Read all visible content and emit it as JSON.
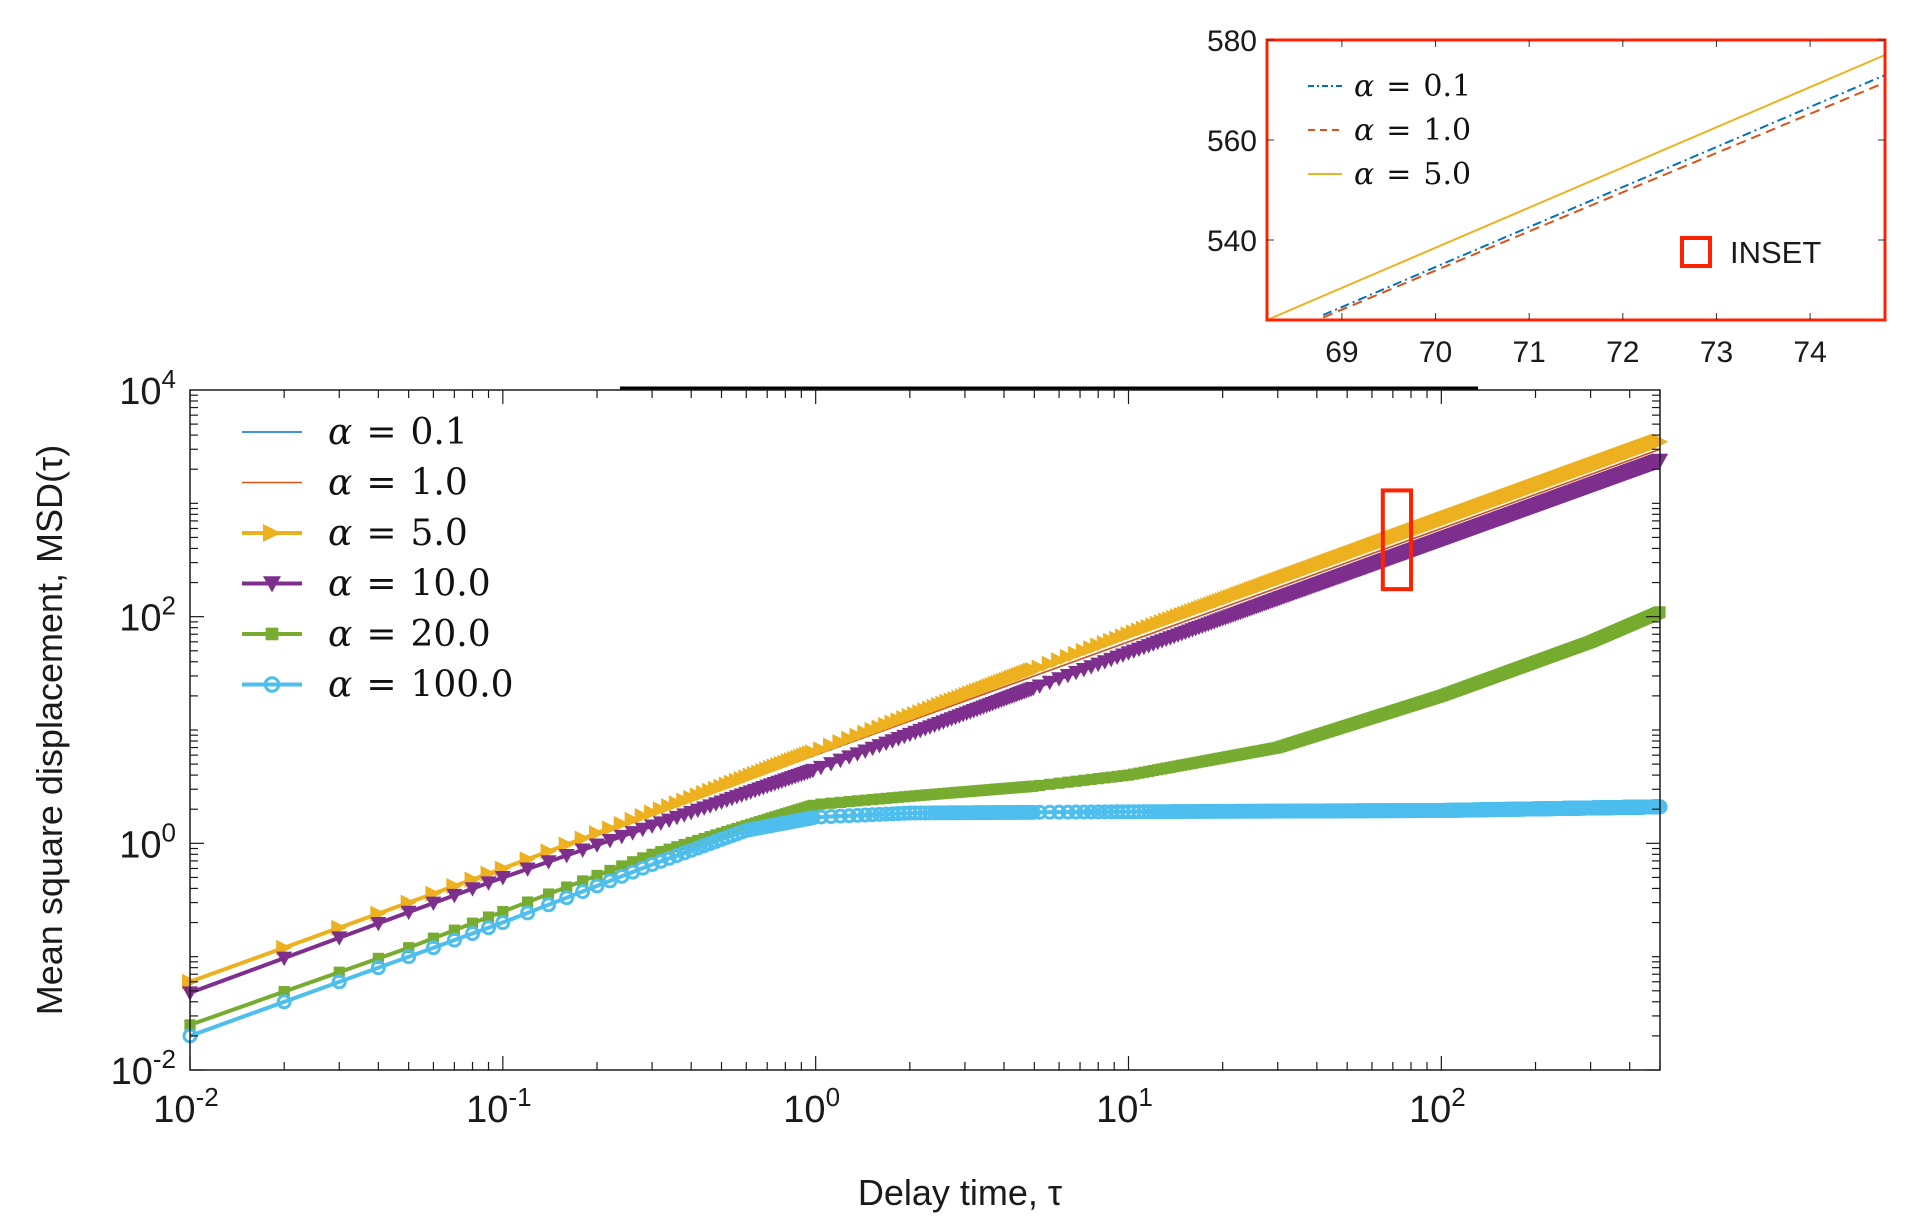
{
  "chart_data": [
    {
      "id": "main",
      "type": "line",
      "scale": "log-log",
      "xlabel": "Delay time, τ",
      "ylabel": "Mean square displacement,  MSD(τ)",
      "xlim": [
        0.01,
        500
      ],
      "ylim": [
        0.01,
        10000
      ],
      "x_ticks": [
        {
          "value": 0.01,
          "base": "10",
          "exp": "-2"
        },
        {
          "value": 0.1,
          "base": "10",
          "exp": "-1"
        },
        {
          "value": 1,
          "base": "10",
          "exp": "0"
        },
        {
          "value": 10,
          "base": "10",
          "exp": "1"
        },
        {
          "value": 100,
          "base": "10",
          "exp": "2"
        }
      ],
      "y_ticks": [
        {
          "value": 0.01,
          "base": "10",
          "exp": "-2"
        },
        {
          "value": 1,
          "base": "10",
          "exp": "0"
        },
        {
          "value": 100,
          "base": "10",
          "exp": "2"
        },
        {
          "value": 10000,
          "base": "10",
          "exp": "4"
        }
      ],
      "legend_position": "top-left",
      "series": [
        {
          "name": "α = 0.1",
          "alpha_text": "α",
          "value_text": "0.1",
          "color": "#0072BD",
          "marker": "none",
          "points": [
            [
              0.01,
              0.06
            ],
            [
              0.1,
              0.6
            ],
            [
              1,
              6.0
            ],
            [
              10,
              60
            ],
            [
              100,
              600
            ],
            [
              500,
              3000
            ]
          ]
        },
        {
          "name": "α = 1.0",
          "alpha_text": "α",
          "value_text": "1.0",
          "color": "#D95319",
          "marker": "none",
          "points": [
            [
              0.01,
              0.06
            ],
            [
              0.1,
              0.6
            ],
            [
              1,
              6.0
            ],
            [
              10,
              60
            ],
            [
              100,
              600
            ],
            [
              500,
              3000
            ]
          ]
        },
        {
          "name": "α = 5.0",
          "alpha_text": "α",
          "value_text": "5.0",
          "color": "#EDB120",
          "marker": "triangle-right",
          "points": [
            [
              0.01,
              0.06
            ],
            [
              0.1,
              0.6
            ],
            [
              1,
              6.5
            ],
            [
              10,
              70
            ],
            [
              100,
              700
            ],
            [
              500,
              3500
            ]
          ]
        },
        {
          "name": "α = 10.0",
          "alpha_text": "α",
          "value_text": "10.0",
          "color": "#7E2F8E",
          "marker": "triangle-down",
          "points": [
            [
              0.01,
              0.048
            ],
            [
              0.1,
              0.5
            ],
            [
              1,
              4.5
            ],
            [
              10,
              48
            ],
            [
              100,
              480
            ],
            [
              500,
              2400
            ]
          ]
        },
        {
          "name": "α = 20.0",
          "alpha_text": "α",
          "value_text": "20.0",
          "color": "#77AC30",
          "marker": "square",
          "points": [
            [
              0.01,
              0.025
            ],
            [
              0.05,
              0.12
            ],
            [
              0.1,
              0.25
            ],
            [
              0.3,
              0.8
            ],
            [
              1,
              2.2
            ],
            [
              2,
              2.6
            ],
            [
              5,
              3.2
            ],
            [
              10,
              4.0
            ],
            [
              30,
              7.0
            ],
            [
              100,
              20
            ],
            [
              300,
              60
            ],
            [
              500,
              110
            ]
          ]
        },
        {
          "name": "α = 100.0",
          "alpha_text": "α",
          "value_text": "100.0",
          "color": "#4DBEEE",
          "marker": "circle",
          "points": [
            [
              0.01,
              0.02
            ],
            [
              0.05,
              0.1
            ],
            [
              0.1,
              0.2
            ],
            [
              0.3,
              0.65
            ],
            [
              0.6,
              1.3
            ],
            [
              1,
              1.7
            ],
            [
              2,
              1.85
            ],
            [
              10,
              1.9
            ],
            [
              100,
              1.95
            ],
            [
              500,
              2.1
            ]
          ]
        }
      ],
      "annotation": {
        "label": "INSET",
        "x_range": [
          65,
          80
        ],
        "y_range": [
          175,
          1300
        ],
        "color": "#FF2200"
      },
      "top_line": {
        "x_range": [
          0.23,
          130
        ]
      }
    },
    {
      "id": "inset",
      "type": "line",
      "scale": "linear",
      "xlim": [
        68.2,
        74.8
      ],
      "ylim": [
        524,
        580
      ],
      "x_ticks": [
        "69",
        "70",
        "71",
        "72",
        "73",
        "74"
      ],
      "y_ticks": [
        "540",
        "560",
        "580"
      ],
      "legend_position": "top-left",
      "series": [
        {
          "name": "α = 0.1",
          "value_text": "0.1",
          "color": "#0072BD",
          "style": "dash-dot",
          "points": [
            [
              68.8,
              525
            ],
            [
              74.8,
              573
            ]
          ]
        },
        {
          "name": "α = 1.0",
          "value_text": "1.0",
          "color": "#D95319",
          "style": "dashed",
          "points": [
            [
              68.8,
              524.5
            ],
            [
              74.8,
              571.5
            ]
          ]
        },
        {
          "name": "α = 5.0",
          "value_text": "5.0",
          "color": "#EDB120",
          "style": "solid",
          "points": [
            [
              68.2,
              524
            ],
            [
              74.8,
              577
            ]
          ]
        }
      ],
      "annotation_label": "INSET"
    }
  ]
}
